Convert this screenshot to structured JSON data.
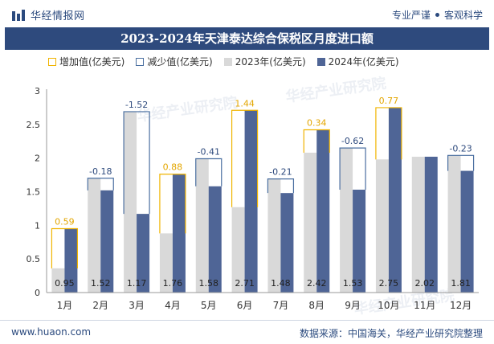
{
  "header": {
    "logo_text": "华经情报网",
    "slogan_left": "专业严谨",
    "slogan_right": "客观科学"
  },
  "title": "2023-2024年天津泰达综合保税区月度进口额",
  "legend": {
    "increase": "增加值(亿美元)",
    "decrease": "减少值(亿美元)",
    "y2023": "2023年(亿美元)",
    "y2024": "2024年(亿美元)"
  },
  "footer": {
    "site": "www.huaon.com",
    "source": "数据来源：中国海关，华经产业研究院整理"
  },
  "watermark": "华经产业研究院",
  "colors": {
    "bar_2023": "#d9d9d9",
    "bar_2024": "#4f6596",
    "increase": "#f0b400",
    "decrease": "#4a6fa0",
    "title_bg": "#2e4a7d"
  },
  "chart_data": {
    "type": "bar",
    "categories": [
      "1月",
      "2月",
      "3月",
      "4月",
      "5月",
      "6月",
      "7月",
      "8月",
      "9月",
      "10月",
      "11月",
      "12月"
    ],
    "series": [
      {
        "name": "2023年(亿美元)",
        "values": [
          0.36,
          1.7,
          2.69,
          0.88,
          1.99,
          1.27,
          1.69,
          2.08,
          2.15,
          1.98,
          2.02,
          2.04
        ]
      },
      {
        "name": "2024年(亿美元)",
        "values": [
          0.95,
          1.52,
          1.17,
          1.76,
          1.58,
          2.71,
          1.48,
          2.42,
          1.53,
          2.75,
          2.02,
          1.81
        ]
      }
    ],
    "change_labels": [
      "0.59",
      "-0.18",
      "-1.52",
      "0.88",
      "-0.41",
      "1.44",
      "-0.21",
      "0.34",
      "-0.62",
      "0.77",
      "",
      "-0.23"
    ],
    "value_labels": [
      "0.95",
      "1.52",
      "1.17",
      "1.76",
      "1.58",
      "2.71",
      "1.48",
      "2.42",
      "1.53",
      "2.75",
      "2.02",
      "1.81"
    ],
    "y_ticks": [
      "0",
      "0.5",
      "1",
      "1.5",
      "2",
      "2.5",
      "3"
    ],
    "ylim": [
      0,
      3
    ],
    "grid": false
  }
}
